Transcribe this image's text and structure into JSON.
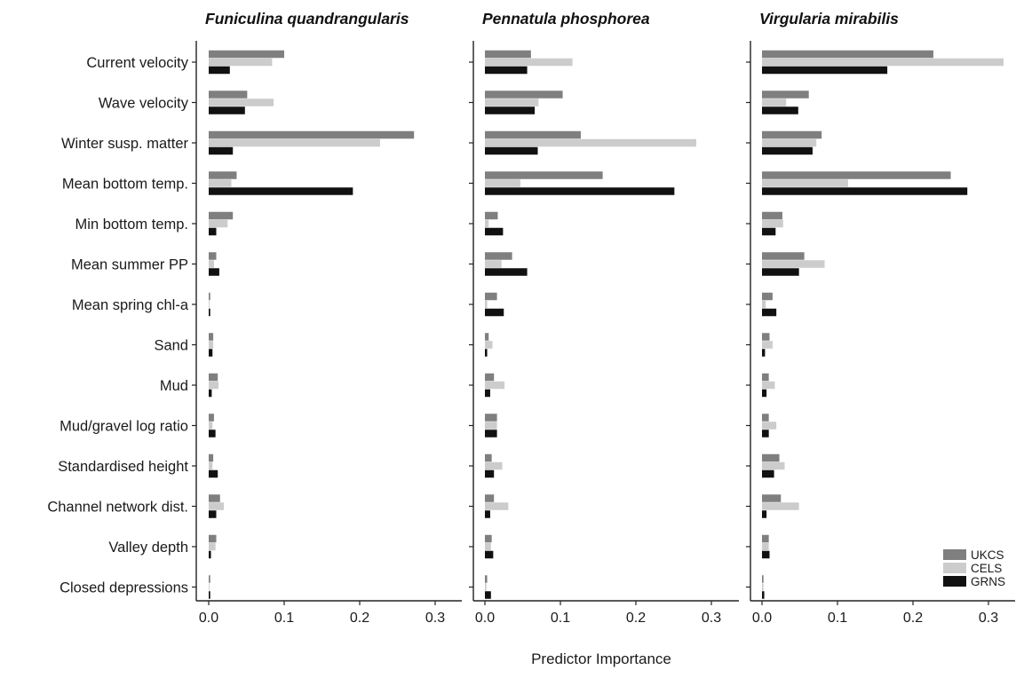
{
  "chart_data": {
    "type": "bar",
    "orientation": "horizontal",
    "xlabel": "Predictor Importance",
    "xlim": [
      0,
      0.33
    ],
    "xticks": [
      0.0,
      0.1,
      0.2,
      0.3
    ],
    "xtick_labels": [
      "0.0",
      "0.1",
      "0.2",
      "0.3"
    ],
    "grid": false,
    "legend_position": "bottom-right",
    "categories": [
      "Current velocity",
      "Wave velocity",
      "Winter susp. matter",
      "Mean bottom temp.",
      "Min bottom temp.",
      "Mean summer PP",
      "Mean spring chl-a",
      "Sand",
      "Mud",
      "Mud/gravel log ratio",
      "Standardised height",
      "Channel network dist.",
      "Valley depth",
      "Closed depressions"
    ],
    "series_colors": {
      "UKCS": "#7f7f7f",
      "CELS": "#cccccc",
      "GRNS": "#111111"
    },
    "legend": [
      "UKCS",
      "CELS",
      "GRNS"
    ],
    "panels": [
      {
        "title": "Funiculina quandrangularis",
        "series": [
          {
            "name": "UKCS",
            "values": [
              0.1,
              0.051,
              0.272,
              0.037,
              0.032,
              0.01,
              0.002,
              0.006,
              0.012,
              0.007,
              0.006,
              0.015,
              0.01,
              0.002
            ]
          },
          {
            "name": "CELS",
            "values": [
              0.084,
              0.086,
              0.227,
              0.03,
              0.025,
              0.007,
              0.001,
              0.006,
              0.013,
              0.005,
              0.005,
              0.02,
              0.009,
              0.001
            ]
          },
          {
            "name": "GRNS",
            "values": [
              0.028,
              0.048,
              0.032,
              0.191,
              0.01,
              0.014,
              0.002,
              0.005,
              0.004,
              0.009,
              0.012,
              0.01,
              0.003,
              0.002
            ]
          }
        ]
      },
      {
        "title": "Pennatula phosphorea",
        "series": [
          {
            "name": "UKCS",
            "values": [
              0.061,
              0.103,
              0.127,
              0.156,
              0.017,
              0.036,
              0.016,
              0.005,
              0.012,
              0.016,
              0.009,
              0.012,
              0.009,
              0.003
            ]
          },
          {
            "name": "CELS",
            "values": [
              0.116,
              0.071,
              0.28,
              0.047,
              0.005,
              0.022,
              0.003,
              0.01,
              0.026,
              0.016,
              0.023,
              0.031,
              0.008,
              0.002
            ]
          },
          {
            "name": "GRNS",
            "values": [
              0.056,
              0.066,
              0.07,
              0.251,
              0.024,
              0.056,
              0.025,
              0.003,
              0.007,
              0.016,
              0.012,
              0.007,
              0.011,
              0.008
            ]
          }
        ]
      },
      {
        "title": "Virgularia mirabilis",
        "series": [
          {
            "name": "UKCS",
            "values": [
              0.227,
              0.062,
              0.079,
              0.25,
              0.027,
              0.056,
              0.014,
              0.01,
              0.009,
              0.009,
              0.023,
              0.025,
              0.009,
              0.002
            ]
          },
          {
            "name": "CELS",
            "values": [
              0.32,
              0.032,
              0.072,
              0.114,
              0.028,
              0.083,
              0.005,
              0.014,
              0.017,
              0.019,
              0.03,
              0.049,
              0.009,
              0.002
            ]
          },
          {
            "name": "GRNS",
            "values": [
              0.166,
              0.048,
              0.067,
              0.272,
              0.018,
              0.049,
              0.019,
              0.004,
              0.006,
              0.009,
              0.016,
              0.006,
              0.01,
              0.003
            ]
          }
        ]
      }
    ]
  }
}
